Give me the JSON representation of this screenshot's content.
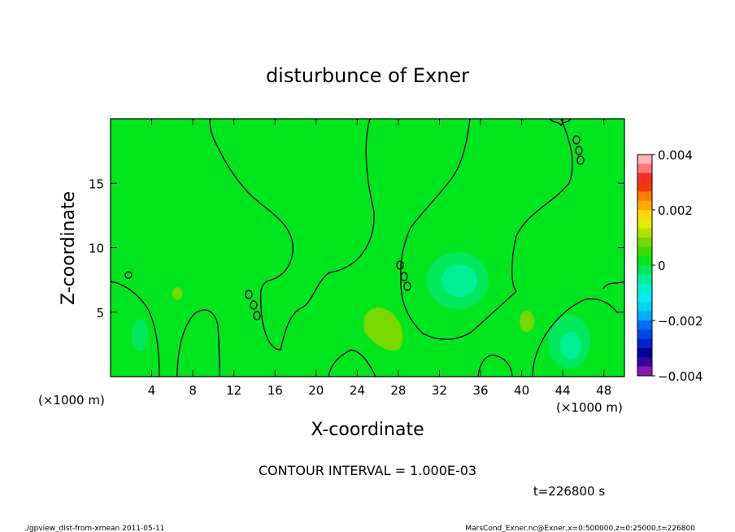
{
  "chart_data": {
    "type": "heatmap",
    "title": "disturbunce of Exner",
    "xlabel": "X-coordinate",
    "ylabel": "Z-coordinate",
    "x_unit_label": "(×1000 m)",
    "y_unit_label": "(×1000 m)",
    "xlim": [
      0,
      50
    ],
    "ylim": [
      0,
      20
    ],
    "x_ticks": [
      4,
      8,
      12,
      16,
      20,
      24,
      28,
      32,
      36,
      40,
      44,
      48
    ],
    "y_ticks": [
      5,
      10,
      15
    ],
    "contour_interval_text": "CONTOUR INTERVAL = 1.000E-03",
    "time_text": "t=226800 s",
    "background_value": 0,
    "colorbar": {
      "min": -0.004,
      "max": 0.004,
      "tick_values": [
        0.004,
        0.002,
        0,
        -0.002,
        -0.004
      ],
      "tick_labels": [
        "0.004",
        "0.002",
        "0",
        "−0.002",
        "−0.004"
      ],
      "colors": [
        "#ffb4b4",
        "#ff7878",
        "#ff2a2a",
        "#f23a0a",
        "#ff7a00",
        "#ffaa00",
        "#ffd700",
        "#e1ee00",
        "#b4e000",
        "#78d800",
        "#3cdc00",
        "#00e61e",
        "#00e85c",
        "#00f096",
        "#00f2cc",
        "#00eeee",
        "#00d2f2",
        "#00aaff",
        "#006eff",
        "#0046e6",
        "#0022c8",
        "#00009a",
        "#3a00a0",
        "#8c14b4"
      ]
    },
    "regions": [
      {
        "label": "weak positive patch",
        "x": 25.6,
        "z": 4.0,
        "value": 0.0005
      },
      {
        "label": "weak positive patch",
        "x": 6.2,
        "z": 6.3,
        "value": 0.0003
      },
      {
        "label": "weak positive patch",
        "x": 40.8,
        "z": 4.2,
        "value": 0.0003
      },
      {
        "label": "negative minimum",
        "x": 34.0,
        "z": 7.8,
        "value": -0.0007
      },
      {
        "label": "negative minimum",
        "x": 45.2,
        "z": 2.3,
        "value": -0.0009
      },
      {
        "label": "negative minimum",
        "x": 2.8,
        "z": 2.8,
        "value": -0.0004
      }
    ]
  },
  "footer": {
    "left": "./gpview_dist-from-xmean  2011-05-11",
    "right": "MarsCond_Exner.nc@Exner,x=0:500000,z=0:25000,t=226800"
  }
}
